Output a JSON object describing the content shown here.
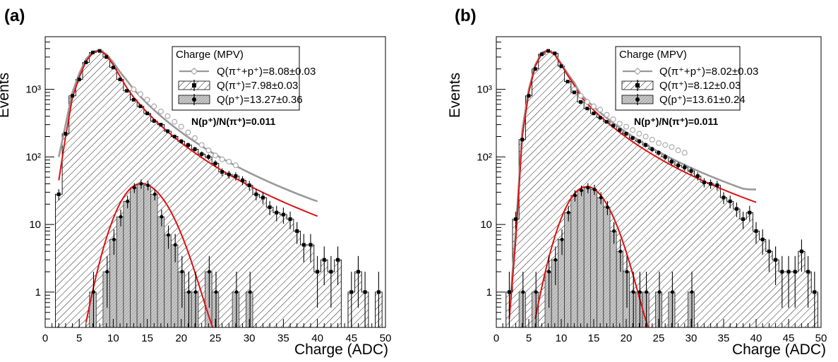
{
  "chart_data": [
    {
      "type": "histogram",
      "panel_label": "(a)",
      "xlabel": "Charge (ADC)",
      "ylabel": "Events",
      "xlim": [
        0,
        50
      ],
      "ylim": [
        0.3,
        6000
      ],
      "yscale": "log",
      "x_ticks": [
        "0",
        "5",
        "10",
        "15",
        "20",
        "25",
        "30",
        "35",
        "40",
        "45",
        "50"
      ],
      "y_ticks": [
        {
          "value": 1,
          "label": "1"
        },
        {
          "value": 10,
          "label": "10"
        },
        {
          "value": 100,
          "label": "10²"
        },
        {
          "value": 1000,
          "label": "10³"
        }
      ],
      "legend": {
        "title": "Charge (MPV)",
        "placement": "top-right",
        "entries": [
          "Q(π⁺+p⁺)=8.08±0.03",
          "Q(π⁺)=7.98±0.03",
          "Q(p⁺)=13.27±0.36"
        ]
      },
      "annotation": "N(p⁺)/N(π⁺)=0.011",
      "bin_width": 1,
      "series": [
        {
          "name": "Q(π⁺)",
          "x": [
            2,
            3,
            4,
            5,
            6,
            7,
            8,
            9,
            10,
            11,
            12,
            13,
            14,
            15,
            16,
            17,
            18,
            19,
            20,
            21,
            22,
            23,
            24,
            25,
            26,
            27,
            28,
            29,
            30,
            31,
            32,
            33,
            34,
            35,
            36,
            37,
            38,
            39,
            40,
            41,
            42,
            43,
            44,
            45,
            46,
            47,
            48,
            49
          ],
          "values": [
            28,
            220,
            800,
            1400,
            2500,
            3500,
            3700,
            3000,
            2100,
            1400,
            950,
            700,
            560,
            440,
            340,
            300,
            240,
            200,
            170,
            150,
            130,
            110,
            100,
            80,
            60,
            55,
            52,
            45,
            38,
            28,
            25,
            18,
            15,
            14,
            12,
            8,
            5,
            5,
            2,
            3,
            2,
            3,
            0,
            1,
            2,
            1,
            0,
            1
          ]
        },
        {
          "name": "Q(p⁺)",
          "x": [
            7,
            9,
            10,
            11,
            12,
            13,
            14,
            15,
            16,
            17,
            18,
            19,
            20,
            21,
            22,
            24,
            25,
            28,
            30
          ],
          "values": [
            1,
            2,
            6,
            13,
            22,
            35,
            40,
            38,
            28,
            13,
            7,
            5,
            2,
            1,
            1,
            2,
            1,
            1,
            1
          ]
        },
        {
          "name": "Q(π⁺+p⁺)",
          "x": [
            13,
            14,
            15,
            16,
            17,
            18,
            19,
            20,
            21,
            22,
            23,
            24,
            25,
            26,
            27,
            28
          ],
          "values": [
            1000,
            850,
            700,
            560,
            470,
            400,
            330,
            280,
            230,
            190,
            150,
            125,
            105,
            92,
            85,
            75
          ]
        }
      ]
    },
    {
      "type": "histogram",
      "panel_label": "(b)",
      "xlabel": "Charge (ADC)",
      "ylabel": "Events",
      "xlim": [
        0,
        50
      ],
      "ylim": [
        0.3,
        6000
      ],
      "yscale": "log",
      "x_ticks": [
        "0",
        "5",
        "10",
        "15",
        "20",
        "25",
        "30",
        "35",
        "40",
        "45",
        "50"
      ],
      "y_ticks": [
        {
          "value": 1,
          "label": "1"
        },
        {
          "value": 10,
          "label": "10"
        },
        {
          "value": 100,
          "label": "10²"
        },
        {
          "value": 1000,
          "label": "10³"
        }
      ],
      "legend": {
        "title": "Charge (MPV)",
        "placement": "top-right",
        "entries": [
          "Q(π⁺+p⁺)=8.02±0.03",
          "Q(π⁺)=8.12±0.03",
          "Q(p⁺)=13.61±0.24"
        ]
      },
      "annotation": "N(p⁺)/N(π⁺)=0.011",
      "bin_width": 1,
      "series": [
        {
          "name": "Q(π⁺)",
          "x": [
            2,
            3,
            4,
            5,
            6,
            7,
            8,
            9,
            10,
            11,
            12,
            13,
            14,
            15,
            16,
            17,
            18,
            19,
            20,
            21,
            22,
            23,
            24,
            25,
            26,
            27,
            28,
            29,
            30,
            31,
            32,
            33,
            34,
            35,
            36,
            37,
            38,
            39,
            40,
            41,
            42,
            43,
            44,
            45,
            46,
            47,
            48,
            49
          ],
          "values": [
            1,
            12,
            180,
            800,
            2000,
            3300,
            3700,
            3400,
            2200,
            1300,
            900,
            650,
            520,
            440,
            380,
            330,
            290,
            250,
            220,
            190,
            170,
            150,
            130,
            115,
            100,
            85,
            75,
            70,
            62,
            52,
            42,
            40,
            38,
            25,
            22,
            17,
            12,
            15,
            8,
            6,
            4,
            3,
            2,
            2,
            2,
            4,
            2,
            1
          ]
        },
        {
          "name": "Q(p⁺)",
          "x": [
            4,
            6,
            8,
            9,
            10,
            11,
            12,
            13,
            14,
            15,
            16,
            17,
            18,
            19,
            20,
            21,
            22,
            23,
            25,
            27,
            30
          ],
          "values": [
            1,
            1,
            2,
            3,
            6,
            15,
            27,
            32,
            35,
            33,
            25,
            18,
            8,
            4,
            2,
            1,
            1,
            1,
            1,
            1,
            1
          ]
        },
        {
          "name": "Q(π⁺+p⁺)",
          "x": [
            12,
            13,
            14,
            15,
            16,
            17,
            18,
            19,
            20,
            21,
            22,
            23,
            24,
            25,
            26,
            27,
            28,
            29
          ],
          "values": [
            1000,
            800,
            650,
            560,
            500,
            420,
            360,
            310,
            280,
            250,
            220,
            200,
            180,
            160,
            150,
            140,
            125,
            115
          ]
        }
      ]
    }
  ]
}
